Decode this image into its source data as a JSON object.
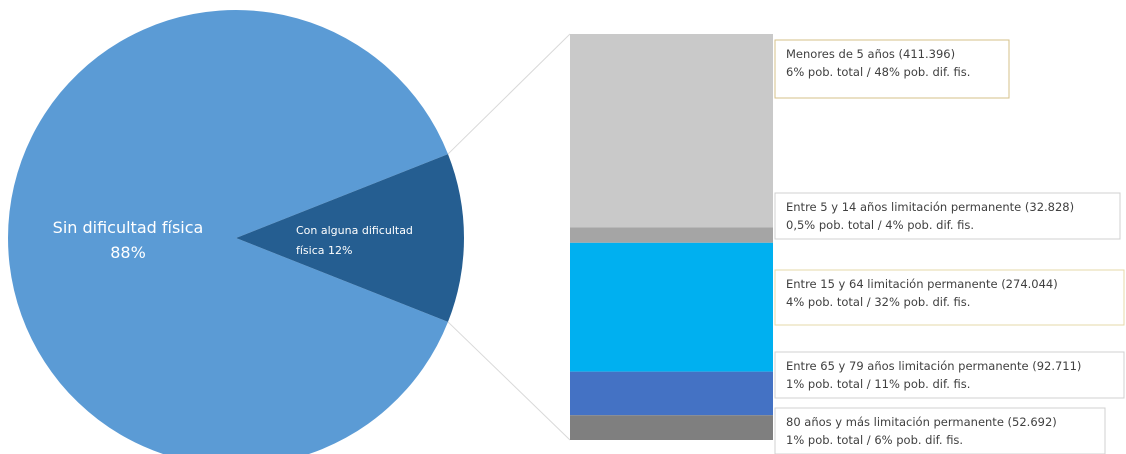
{
  "chart_data": {
    "type": "bar-of-pie",
    "pie": {
      "slices": [
        {
          "label": "Sin dificultad física",
          "percent_text": "88%",
          "value": 88,
          "color": "#5b9bd5"
        },
        {
          "label": "Con alguna dificultad física",
          "percent_text": "12%",
          "value": 12,
          "color": "#255e91"
        }
      ]
    },
    "stacked_bar": {
      "segments": [
        {
          "value": 411396,
          "color": "#c9c9c9",
          "label_line1": "Menores de 5 años (411.396)",
          "label_line2": "6% pob. total / 48% pob. dif. fis.",
          "border_color": "#d6c08a"
        },
        {
          "value": 32828,
          "color": "#a5a5a5",
          "label_line1": "Entre 5 y 14 años limitación permanente (32.828)",
          "label_line2": "0,5% pob. total / 4% pob. dif. fis.",
          "border_color": "#d0d0d0"
        },
        {
          "value": 274044,
          "color": "#00b0f0",
          "label_line1": "Entre 15 y 64 limitación permanente (274.044)",
          "label_line2": "4% pob. total / 32% pob. dif. fis.",
          "border_color": "#e6d8a8"
        },
        {
          "value": 92711,
          "color": "#4472c4",
          "label_line1": "Entre 65 y 79 años limitación permanente (92.711)",
          "label_line2": "1% pob. total / 11% pob. dif. fis.",
          "border_color": "#d0d0d0"
        },
        {
          "value": 52692,
          "color": "#7f7f7f",
          "label_line1": "80 años y más limitación permanente (52.692)",
          "label_line2": "1% pob. total / 6% pob. dif. fis.",
          "border_color": "#d0d0d0"
        }
      ]
    }
  }
}
